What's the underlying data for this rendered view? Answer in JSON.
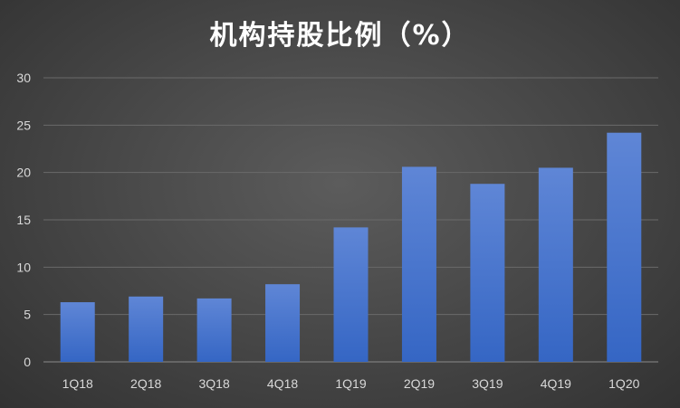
{
  "chart_data": {
    "type": "bar",
    "title": "机构持股比例（%）",
    "xlabel": "",
    "ylabel": "",
    "categories": [
      "1Q18",
      "2Q18",
      "3Q18",
      "4Q18",
      "1Q19",
      "2Q19",
      "3Q19",
      "4Q19",
      "1Q20"
    ],
    "values": [
      6.3,
      6.9,
      6.7,
      8.2,
      14.2,
      20.6,
      18.8,
      20.5,
      24.2
    ],
    "ylim": [
      0,
      30
    ],
    "yticks": [
      "0",
      "5",
      "10",
      "15",
      "20",
      "25",
      "30"
    ],
    "grid": true,
    "legend": "none",
    "colors": {
      "bar_top": "#5f86d6",
      "bar_bottom": "#3566c4",
      "gridline": "#6a6a6a",
      "axis": "#8a8a8a"
    }
  }
}
